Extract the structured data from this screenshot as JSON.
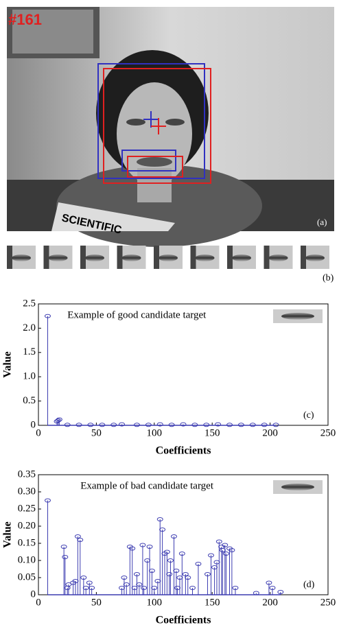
{
  "figure": {
    "frame_number": "#161",
    "panel_a": "(a)",
    "magazine": "SCIENTIFIC",
    "panel_b": "(b)"
  },
  "chart_data": [
    {
      "type": "stem",
      "annotation": "Example of good candidate target",
      "panel_label": "(c)",
      "x_label": "Coefficients",
      "y_label": "Value",
      "color": "#3b3bb0",
      "x": [
        8,
        16,
        17,
        18,
        25,
        35,
        45,
        55,
        65,
        72,
        85,
        95,
        105,
        115,
        125,
        135,
        145,
        155,
        165,
        175,
        185,
        195,
        205
      ],
      "values": [
        2.25,
        0.08,
        0.1,
        0.12,
        0.01,
        0.01,
        0.01,
        0.01,
        0.01,
        0.02,
        0.01,
        0.01,
        0.02,
        0.01,
        0.02,
        0.01,
        0.01,
        0.02,
        0.01,
        0.01,
        0.01,
        0.01,
        0.01
      ],
      "xlim": [
        0,
        250
      ],
      "ylim": [
        0,
        2.5
      ],
      "xticks": [
        0,
        50,
        100,
        150,
        200,
        250
      ],
      "yticks": [
        0,
        0.5,
        {
          "value": 1,
          "label": "1.0"
        },
        1.5,
        {
          "value": 2,
          "label": "2.0"
        },
        2.5
      ]
    },
    {
      "type": "stem",
      "annotation": "Example of bad candidate target",
      "panel_label": "(d)",
      "x_label": "Coefficients",
      "y_label": "Value",
      "color": "#3b3bb0",
      "x": [
        8,
        22,
        23,
        25,
        26,
        30,
        32,
        34,
        36,
        39,
        41,
        44,
        46,
        72,
        74,
        76,
        79,
        81,
        83,
        85,
        87,
        90,
        91,
        94,
        96,
        98,
        100,
        103,
        105,
        107,
        109,
        111,
        113,
        114,
        117,
        119,
        120,
        122,
        124,
        127,
        129,
        133,
        138,
        146,
        149,
        152,
        154,
        156,
        158,
        159,
        161,
        162,
        165,
        167,
        170,
        188,
        199,
        202,
        209
      ],
      "values": [
        0.275,
        0.14,
        0.11,
        0.02,
        0.03,
        0.035,
        0.04,
        0.17,
        0.16,
        0.05,
        0.02,
        0.035,
        0.02,
        0.02,
        0.05,
        0.03,
        0.14,
        0.135,
        0.02,
        0.06,
        0.03,
        0.145,
        0.02,
        0.1,
        0.14,
        0.07,
        0.02,
        0.04,
        0.22,
        0.19,
        0.12,
        0.125,
        0.06,
        0.1,
        0.17,
        0.07,
        0.02,
        0.05,
        0.12,
        0.06,
        0.05,
        0.02,
        0.09,
        0.06,
        0.115,
        0.08,
        0.095,
        0.155,
        0.14,
        0.13,
        0.145,
        0.12,
        0.135,
        0.13,
        0.02,
        0.005,
        0.035,
        0.02,
        0.008
      ],
      "xlim": [
        0,
        250
      ],
      "ylim": [
        0,
        0.35
      ],
      "xticks": [
        0,
        50,
        100,
        150,
        200,
        250
      ],
      "yticks": [
        0,
        0.05,
        {
          "value": 0.1,
          "label": "0.10"
        },
        0.15,
        {
          "value": 0.2,
          "label": "0.20"
        },
        0.25,
        {
          "value": 0.3,
          "label": "0.30"
        },
        0.35
      ]
    }
  ]
}
